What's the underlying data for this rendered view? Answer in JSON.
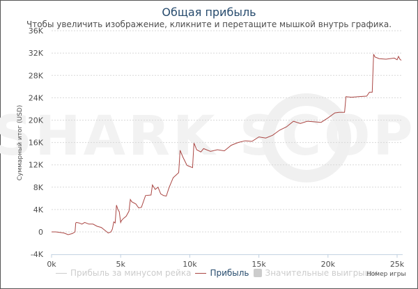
{
  "chart_data": {
    "type": "line",
    "title": "Общая прибыль",
    "subtitle": "Чтобы увеличить изображение, кликните и перетащите мышкой внутрь графика.",
    "xlabel": "Номер игры",
    "ylabel": "Суммарный итог (USD)",
    "xlim": [
      0,
      25500
    ],
    "ylim": [
      -4000,
      36000
    ],
    "x_ticks": [
      "0k",
      "5k",
      "10k",
      "15k",
      "20k",
      "25k"
    ],
    "y_ticks": [
      "36K",
      "32K",
      "28K",
      "24K",
      "20K",
      "16K",
      "12K",
      "8K",
      "4K",
      "0",
      "-4K"
    ],
    "grid": true,
    "legend_position": "bottom",
    "series": [
      {
        "name": "Прибыль",
        "color": "#aa4643",
        "visible": true,
        "x": [
          0,
          300,
          600,
          900,
          1200,
          1500,
          1700,
          1750,
          1800,
          2000,
          2200,
          2400,
          2700,
          3000,
          3300,
          3600,
          3900,
          4100,
          4300,
          4400,
          4500,
          4600,
          4700,
          4800,
          4900,
          5000,
          5050,
          5200,
          5400,
          5600,
          5700,
          5800,
          6100,
          6300,
          6500,
          6800,
          7200,
          7300,
          7500,
          7700,
          7900,
          8100,
          8300,
          8500,
          8800,
          9200,
          9300,
          9500,
          9800,
          10000,
          10200,
          10300,
          10500,
          10800,
          11000,
          11500,
          12000,
          12500,
          13000,
          13500,
          14000,
          14500,
          15000,
          15500,
          16000,
          16500,
          17000,
          17500,
          18000,
          18500,
          19000,
          19500,
          20000,
          20500,
          20800,
          21200,
          21300,
          21700,
          22200,
          22800,
          23000,
          23200,
          23300,
          23400,
          23700,
          24200,
          24800,
          25000,
          25100,
          25200,
          25300
        ],
        "values": [
          0,
          0,
          -100,
          -200,
          -500,
          -300,
          0,
          1600,
          1700,
          1600,
          1400,
          1700,
          1400,
          1400,
          1000,
          800,
          200,
          -200,
          0,
          500,
          1800,
          1600,
          4800,
          4000,
          3600,
          1700,
          2000,
          2400,
          2800,
          3700,
          5800,
          5400,
          5000,
          4300,
          4400,
          6500,
          6600,
          8400,
          7600,
          8000,
          6800,
          6500,
          6400,
          7900,
          9700,
          10600,
          14600,
          13400,
          11900,
          11700,
          11500,
          15900,
          14700,
          14300,
          14900,
          14400,
          14700,
          14500,
          15500,
          16000,
          16300,
          16200,
          17000,
          16800,
          17300,
          18200,
          18800,
          19800,
          19400,
          19800,
          19700,
          19600,
          20400,
          21300,
          21400,
          21400,
          24200,
          24100,
          24200,
          24300,
          25000,
          25000,
          31800,
          31300,
          31000,
          30900,
          31100,
          30800,
          31400,
          30900,
          30700
        ]
      },
      {
        "name": "Прибыль за минусом рейка",
        "color": "#cccccc",
        "visible": false,
        "x": [],
        "values": []
      },
      {
        "name": "Значительные выигрыши",
        "color": "#cccccc",
        "visible": false,
        "x": [],
        "values": []
      }
    ]
  },
  "watermark": "SHARK SCOPE",
  "legend": {
    "items": [
      {
        "label": "Прибыль за минусом рейка",
        "color": "#cccccc",
        "text_color": "#cccccc",
        "type": "line"
      },
      {
        "label": "Прибыль",
        "color": "#aa4643",
        "text_color": "#274b6d",
        "type": "line"
      },
      {
        "label": "Значительные выигрыши",
        "color": "#cccccc",
        "text_color": "#cccccc",
        "type": "box"
      }
    ]
  }
}
